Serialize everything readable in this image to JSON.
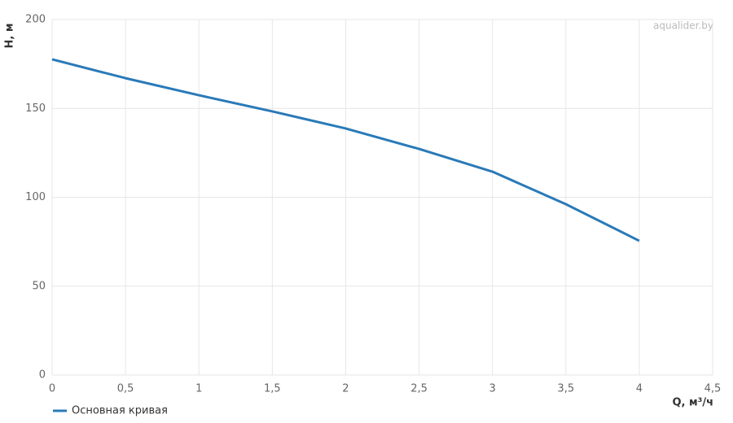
{
  "chart_data": {
    "type": "line",
    "watermark": "aqualider.by",
    "x_label": "Q, м³/ч",
    "y_label": "H, м",
    "x": [
      0,
      0.5,
      1,
      1.5,
      2,
      2.5,
      3,
      3.5,
      4
    ],
    "series": [
      {
        "name": "Основная кривая",
        "color": "#2a7ab8",
        "values": [
          177.6,
          167,
          157.4,
          148.3,
          138.7,
          127.2,
          114.4,
          96.1,
          75.5
        ]
      }
    ],
    "xlim": [
      0,
      4.5
    ],
    "xticks": [
      0,
      {
        "value": 0.5,
        "label": "0,5"
      },
      1,
      {
        "value": 1.5,
        "label": "1,5"
      },
      2,
      {
        "value": 2.5,
        "label": "2,5"
      },
      3,
      {
        "value": 3.5,
        "label": "3,5"
      },
      4,
      {
        "value": 4.5,
        "label": "4,5"
      }
    ],
    "ylim": [
      0,
      200
    ],
    "yticks": [
      0,
      50,
      100,
      150,
      200
    ],
    "grid": true,
    "legend": "bottom-left"
  }
}
